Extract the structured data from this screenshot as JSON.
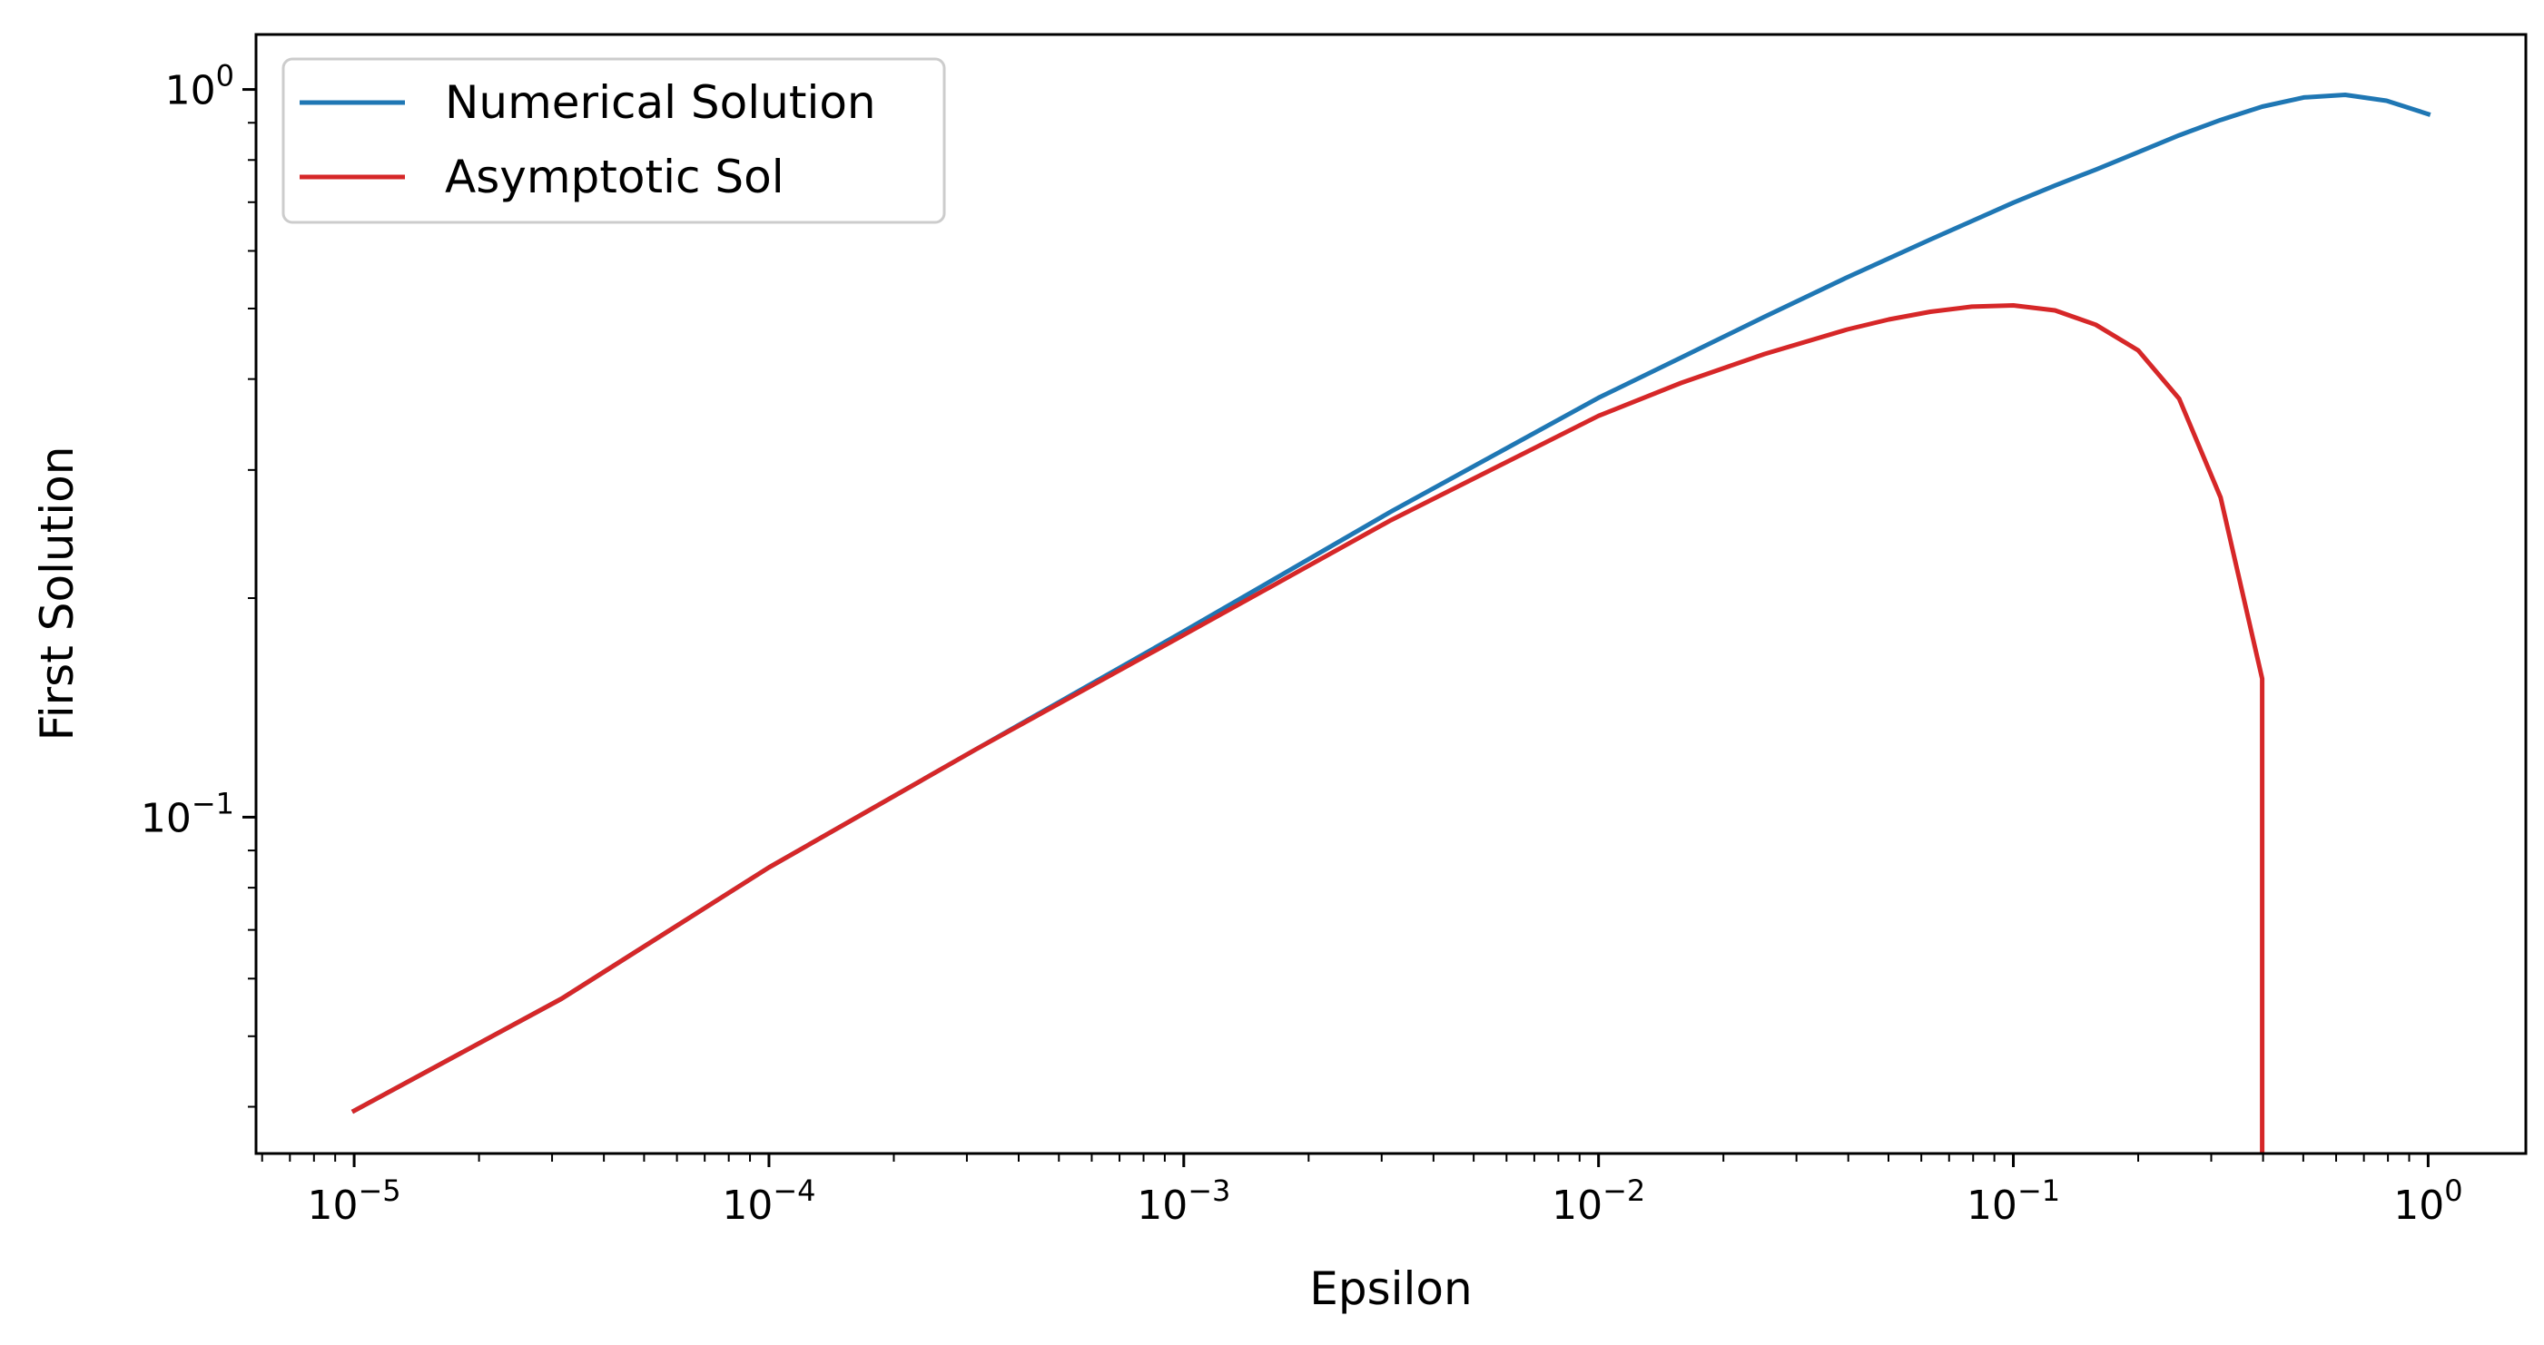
{
  "chart_data": {
    "type": "line",
    "title": "",
    "xlabel": "Epsilon",
    "ylabel": "First Solution",
    "xscale": "log",
    "yscale": "log",
    "xlim": [
      5.8e-06,
      1.72
    ],
    "ylim": [
      0.0345,
      1.19
    ],
    "grid": false,
    "legend_position": "top-left",
    "x_ticks": [
      {
        "base": "10",
        "exp": "−5",
        "value": 1e-05
      },
      {
        "base": "10",
        "exp": "−4",
        "value": 0.0001
      },
      {
        "base": "10",
        "exp": "−3",
        "value": 0.001
      },
      {
        "base": "10",
        "exp": "−2",
        "value": 0.01
      },
      {
        "base": "10",
        "exp": "−1",
        "value": 0.1
      },
      {
        "base": "10",
        "exp": "0",
        "value": 1
      }
    ],
    "y_ticks": [
      {
        "base": "10",
        "exp": "−1",
        "value": 0.1
      },
      {
        "base": "10",
        "exp": "0",
        "value": 1
      }
    ],
    "series": [
      {
        "name": "Numerical Solution",
        "color": "#1f77b4",
        "points": [
          [
            1e-05,
            0.0395
          ],
          [
            3.16e-05,
            0.0563
          ],
          [
            0.0001,
            0.0853
          ],
          [
            0.000316,
            0.124
          ],
          [
            0.001,
            0.18
          ],
          [
            0.00316,
            0.263
          ],
          [
            0.01,
            0.377
          ],
          [
            0.0158,
            0.428
          ],
          [
            0.0251,
            0.487
          ],
          [
            0.0398,
            0.552
          ],
          [
            0.0631,
            0.622
          ],
          [
            0.1,
            0.699
          ],
          [
            0.126,
            0.738
          ],
          [
            0.158,
            0.776
          ],
          [
            0.2,
            0.82
          ],
          [
            0.251,
            0.865
          ],
          [
            0.316,
            0.908
          ],
          [
            0.398,
            0.947
          ],
          [
            0.501,
            0.975
          ],
          [
            0.631,
            0.983
          ],
          [
            0.794,
            0.965
          ],
          [
            1.0,
            0.925
          ]
        ]
      },
      {
        "name": "Asymptotic Sol",
        "color": "#d62728",
        "points": [
          [
            1e-05,
            0.0395
          ],
          [
            3.16e-05,
            0.0563
          ],
          [
            0.0001,
            0.0853
          ],
          [
            0.000316,
            0.124
          ],
          [
            0.001,
            0.178
          ],
          [
            0.00316,
            0.256
          ],
          [
            0.01,
            0.356
          ],
          [
            0.0158,
            0.395
          ],
          [
            0.0251,
            0.433
          ],
          [
            0.0398,
            0.468
          ],
          [
            0.0501,
            0.483
          ],
          [
            0.0631,
            0.495
          ],
          [
            0.0794,
            0.503
          ],
          [
            0.1,
            0.505
          ],
          [
            0.126,
            0.497
          ],
          [
            0.158,
            0.475
          ],
          [
            0.2,
            0.438
          ],
          [
            0.251,
            0.376
          ],
          [
            0.316,
            0.275
          ],
          [
            0.398,
            0.155
          ],
          [
            0.398,
            0.0345
          ]
        ]
      }
    ]
  }
}
